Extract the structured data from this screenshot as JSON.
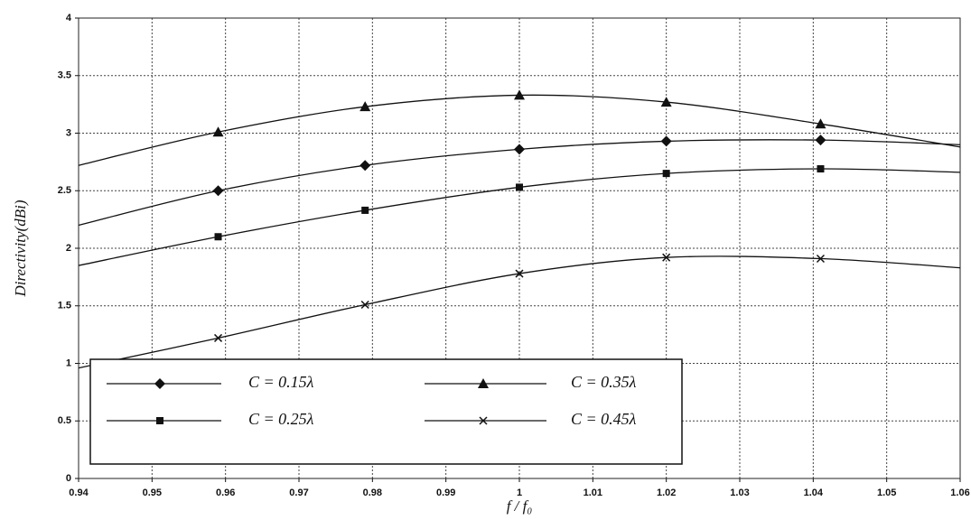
{
  "chart_data": {
    "type": "line",
    "x_label": "f / f₀",
    "y_label": "Directivity(dBi)",
    "x": [
      0.94,
      0.959,
      0.979,
      1.0,
      1.02,
      1.041,
      1.06
    ],
    "series": [
      {
        "name": "C = 0.15λ",
        "color": "#111111",
        "marker": "diamond",
        "values": [
          2.2,
          2.5,
          2.72,
          2.86,
          2.93,
          2.94,
          2.9
        ]
      },
      {
        "name": "C = 0.25λ",
        "color": "#111111",
        "marker": "square",
        "values": [
          1.85,
          2.1,
          2.33,
          2.53,
          2.65,
          2.69,
          2.66
        ]
      },
      {
        "name": "C = 0.35λ",
        "color": "#111111",
        "marker": "triangle",
        "values": [
          2.72,
          3.01,
          3.23,
          3.33,
          3.27,
          3.08,
          2.88
        ]
      },
      {
        "name": "C = 0.45λ",
        "color": "#111111",
        "marker": "x",
        "values": [
          0.96,
          1.22,
          1.51,
          1.78,
          1.92,
          1.91,
          1.83
        ]
      }
    ],
    "xlim": [
      0.94,
      1.06
    ],
    "xticks": [
      0.94,
      0.95,
      0.96,
      0.97,
      0.98,
      0.99,
      1,
      1.01,
      1.02,
      1.03,
      1.04,
      1.05,
      1.06
    ],
    "ylim": [
      0,
      4
    ],
    "yticks": [
      0,
      0.5,
      1,
      1.5,
      2,
      2.5,
      3,
      3.5,
      4
    ],
    "grid": true,
    "legend": "lower left"
  }
}
